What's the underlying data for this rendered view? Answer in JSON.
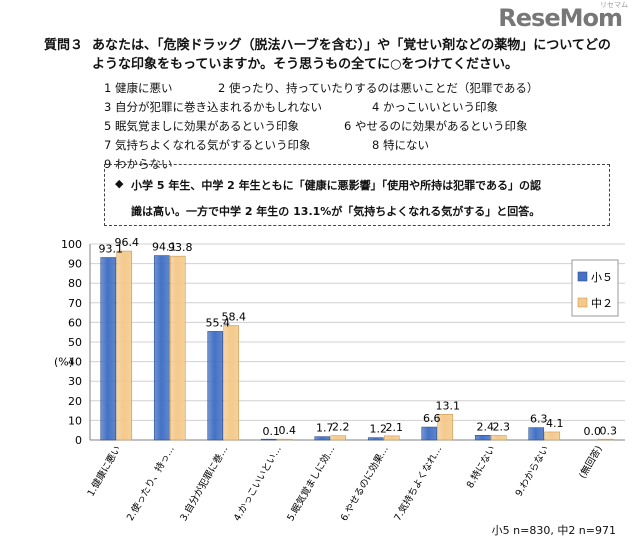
{
  "logo": {
    "text": "ReseMom",
    "tm": "リセマム"
  },
  "question": {
    "number": "質問３",
    "text": "あなたは、「危険ドラッグ（脱法ハーブを含む）」や「覚せい剤などの薬物」についてどのような印象をもっていますか。そう思うもの全てに○をつけてください。"
  },
  "options": [
    "1 健康に悪い",
    "2 使ったり、持っていたりするのは悪いことだ（犯罪である）",
    "3 自分が犯罪に巻き込まれるかもしれない",
    "4 かっこいいという印象",
    "5 眠気覚ましに効果があるという印象",
    "6 やせるのに効果があるという印象",
    "7 気持ちよくなれる気がするという印象",
    "8 特にない",
    "9 わからない"
  ],
  "note": {
    "mark": "◆",
    "line1": "小学 5 年生、中学 2 年生ともに「健康に悪影響」「使用や所持は犯罪である」の認",
    "line2": "識は高い。一方で中学 2 年生の 13.1%が「気持ちよくなれる気がする」と回答。"
  },
  "footnote": "小5 n=830, 中2 n=971",
  "colors": {
    "series1": "#4472c4",
    "series2": "#f4c98c"
  },
  "chart_data": {
    "type": "bar",
    "ylabel": "(%)",
    "ylim": [
      0,
      100
    ],
    "yticks": [
      "0",
      "10",
      "20",
      "30",
      "40",
      "50",
      "60",
      "70",
      "80",
      "90",
      "100"
    ],
    "grid": true,
    "legend_position": "right",
    "categories": [
      "1.健康に悪い",
      "2.使ったり、持っ…",
      "3.自分が犯罪に巻…",
      "4.かっこいいとい…",
      "5.眠気覚ましに効…",
      "6.やせるのに効果…",
      "7.気持ちよくなれ…",
      "8.特にない",
      "9.わからない",
      "(無回答)"
    ],
    "series": [
      {
        "name": "小５",
        "values": [
          93.1,
          94.1,
          55.4,
          0.1,
          1.7,
          1.2,
          6.6,
          2.4,
          6.3,
          0.0
        ],
        "labels": [
          "93.1",
          "94.1",
          "55.4",
          "0.1",
          "1.7",
          "1.2",
          "6.6",
          "2.4",
          "6.3",
          "0.0"
        ]
      },
      {
        "name": "中２",
        "values": [
          96.4,
          93.8,
          58.4,
          0.4,
          2.2,
          2.1,
          13.1,
          2.3,
          4.1,
          0.3
        ],
        "labels": [
          "96.4",
          "93.8",
          "58.4",
          "0.4",
          "2.2",
          "2.1",
          "13.1",
          "2.3",
          "4.1",
          "0.3"
        ]
      }
    ]
  }
}
